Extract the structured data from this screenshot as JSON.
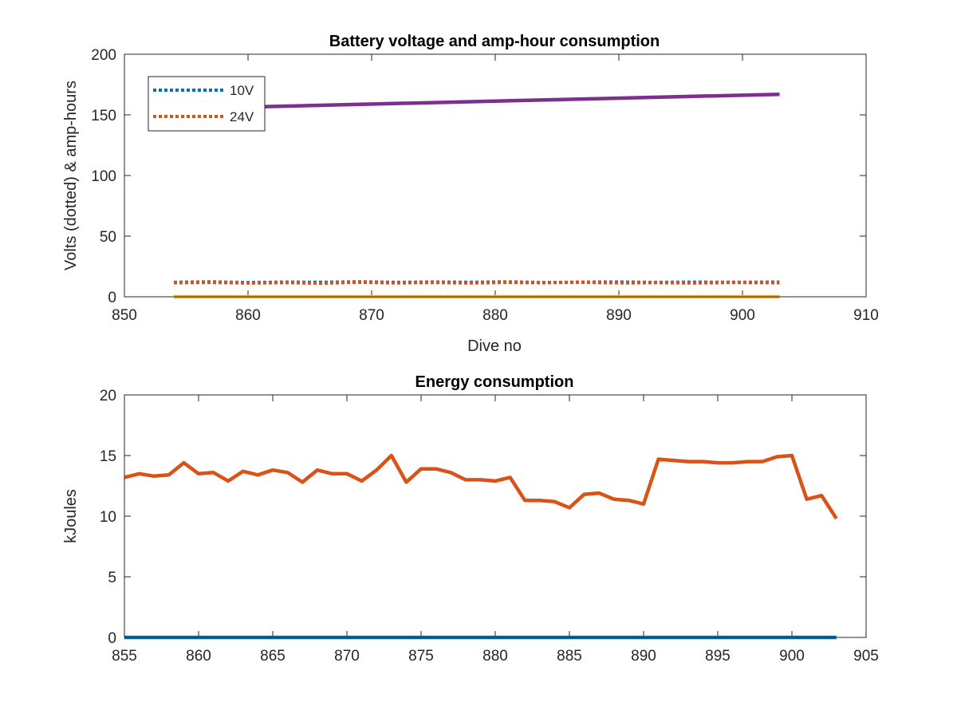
{
  "chart_data": [
    {
      "type": "line",
      "title": "Battery voltage and amp-hour consumption",
      "xlabel": "Dive no",
      "ylabel": "Volts (dotted) & amp-hours",
      "xlim": [
        850,
        910
      ],
      "ylim": [
        0,
        200
      ],
      "xticks": [
        850,
        860,
        870,
        880,
        890,
        900,
        910
      ],
      "yticks": [
        0,
        50,
        100,
        150,
        200
      ],
      "xtick_labels": [
        "850",
        "860",
        "870",
        "880",
        "890",
        "900",
        "910"
      ],
      "ytick_labels": [
        "0",
        "50",
        "100",
        "150",
        "200"
      ],
      "grid": false,
      "legend": {
        "placement": "top-left",
        "entries": [
          "10V",
          "24V"
        ]
      },
      "series": [
        {
          "name": "10V",
          "style": "dotted",
          "color": "#0072BD",
          "x": [
            854,
            857,
            860,
            863,
            866,
            869,
            872,
            875,
            878,
            881,
            884,
            887,
            890,
            893,
            896,
            899,
            903
          ],
          "y": [
            12,
            12.3,
            11.8,
            12.1,
            12,
            12.4,
            11.9,
            12.2,
            12,
            12.3,
            11.8,
            12.1,
            12.2,
            11.9,
            12.1,
            12,
            12.1
          ]
        },
        {
          "name": "24V",
          "style": "dotted",
          "color": "#D95319",
          "x": [
            854,
            857,
            860,
            863,
            866,
            869,
            872,
            875,
            878,
            881,
            884,
            887,
            890,
            893,
            896,
            899,
            903
          ],
          "y": [
            11.5,
            11.8,
            11.3,
            11.6,
            11.2,
            11.9,
            11.4,
            11.7,
            11.3,
            11.8,
            11.5,
            11.9,
            11.4,
            11.6,
            11.3,
            11.7,
            11.5
          ]
        },
        {
          "style": "solid",
          "color": "#EDB120",
          "x": [
            854,
            903
          ],
          "y": [
            0,
            0
          ]
        },
        {
          "style": "solid",
          "color": "#7E2F8E",
          "x": [
            854,
            903
          ],
          "y": [
            155,
            167
          ]
        }
      ]
    },
    {
      "type": "line",
      "title": "Energy consumption",
      "xlabel": "",
      "ylabel": "kJoules",
      "xlim": [
        855,
        905
      ],
      "ylim": [
        0,
        20
      ],
      "xticks": [
        855,
        860,
        865,
        870,
        875,
        880,
        885,
        890,
        895,
        900,
        905
      ],
      "yticks": [
        0,
        5,
        10,
        15,
        20
      ],
      "xtick_labels": [
        "855",
        "860",
        "865",
        "870",
        "875",
        "880",
        "885",
        "890",
        "895",
        "900",
        "905"
      ],
      "ytick_labels": [
        "0",
        "5",
        "10",
        "15",
        "20"
      ],
      "grid": false,
      "series": [
        {
          "style": "solid",
          "color": "#0072BD",
          "x": [
            855,
            903
          ],
          "y": [
            0,
            0
          ]
        },
        {
          "style": "solid",
          "color": "#D95319",
          "x": [
            855,
            856,
            857,
            858,
            859,
            860,
            861,
            862,
            863,
            864,
            865,
            866,
            867,
            868,
            869,
            870,
            871,
            872,
            873,
            874,
            875,
            876,
            877,
            878,
            879,
            880,
            881,
            882,
            883,
            884,
            885,
            886,
            887,
            888,
            889,
            890,
            891,
            892,
            893,
            894,
            895,
            896,
            897,
            898,
            899,
            900,
            901,
            902,
            903
          ],
          "y": [
            13.2,
            13.5,
            13.3,
            13.4,
            14.4,
            13.5,
            13.6,
            12.9,
            13.7,
            13.4,
            13.8,
            13.6,
            12.8,
            13.8,
            13.5,
            13.5,
            12.9,
            13.8,
            15.0,
            12.8,
            13.9,
            13.9,
            13.6,
            13.0,
            13.0,
            12.9,
            13.2,
            11.3,
            11.3,
            11.2,
            10.7,
            11.8,
            11.9,
            11.4,
            11.3,
            11.0,
            14.7,
            14.6,
            14.5,
            14.5,
            14.4,
            14.4,
            14.5,
            14.5,
            14.9,
            15.0,
            11.4,
            11.7,
            9.8
          ]
        }
      ]
    }
  ]
}
